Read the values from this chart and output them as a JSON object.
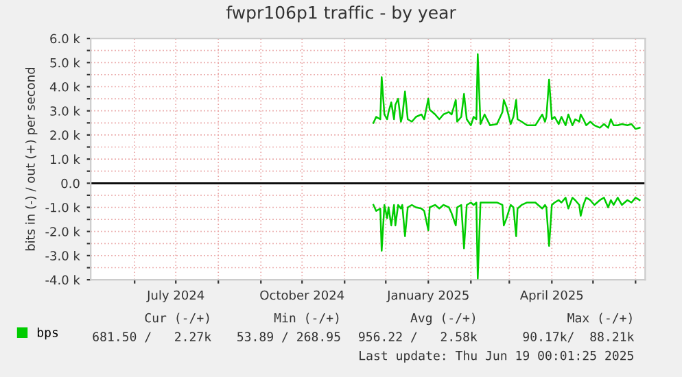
{
  "chart_data": {
    "type": "line",
    "title": "fwpr106p1 traffic - by year",
    "ylabel": "bits in (-) / out (+) per second",
    "x": [
      "2024-11-22",
      "2024-11-24",
      "2024-11-27",
      "2024-11-28",
      "2024-11-30",
      "2024-12-02",
      "2024-12-03",
      "2024-12-05",
      "2024-12-07",
      "2024-12-08",
      "2024-12-10",
      "2024-12-12",
      "2024-12-13",
      "2024-12-15",
      "2024-12-17",
      "2024-12-20",
      "2024-12-23",
      "2024-12-27",
      "2024-12-29",
      "2025-01-01",
      "2025-01-02",
      "2025-01-06",
      "2025-01-09",
      "2025-01-12",
      "2025-01-16",
      "2025-01-18",
      "2025-01-21",
      "2025-01-22",
      "2025-01-25",
      "2025-01-27",
      "2025-01-29",
      "2025-02-01",
      "2025-02-03",
      "2025-02-05",
      "2025-02-06",
      "2025-02-08",
      "2025-02-11",
      "2025-02-15",
      "2025-02-20",
      "2025-02-24",
      "2025-02-25",
      "2025-02-27",
      "2025-03-02",
      "2025-03-04",
      "2025-03-06",
      "2025-03-07",
      "2025-03-10",
      "2025-03-14",
      "2025-03-20",
      "2025-03-25",
      "2025-03-27",
      "2025-03-28",
      "2025-03-30",
      "2025-04-01",
      "2025-04-03",
      "2025-04-06",
      "2025-04-08",
      "2025-04-11",
      "2025-04-13",
      "2025-04-16",
      "2025-04-18",
      "2025-04-21",
      "2025-04-22",
      "2025-04-24",
      "2025-04-26",
      "2025-04-29",
      "2025-05-02",
      "2025-05-06",
      "2025-05-09",
      "2025-05-12",
      "2025-05-14",
      "2025-05-16",
      "2025-05-19",
      "2025-05-22",
      "2025-05-26",
      "2025-05-29",
      "2025-06-01",
      "2025-06-04"
    ],
    "series": [
      {
        "name": "bps",
        "color": "#00cc00",
        "values": [
          2500,
          2750,
          2650,
          4400,
          2850,
          2650,
          2950,
          3350,
          2650,
          3250,
          3500,
          2550,
          2750,
          3800,
          2650,
          2550,
          2750,
          2850,
          2650,
          3500,
          3050,
          2850,
          2650,
          2850,
          2950,
          2850,
          3450,
          2550,
          2750,
          3700,
          2650,
          2400,
          2750,
          2650,
          5350,
          2450,
          2850,
          2400,
          2450,
          2950,
          3450,
          3150,
          2450,
          2750,
          3450,
          2650,
          2550,
          2400,
          2400,
          2850,
          2550,
          2750,
          4300,
          2650,
          2750,
          2450,
          2750,
          2400,
          2850,
          2400,
          2650,
          2550,
          2850,
          2650,
          2400,
          2550,
          2400,
          2300,
          2450,
          2300,
          2650,
          2400,
          2400,
          2450,
          2400,
          2450,
          2250,
          2300
        ]
      },
      {
        "color": "#00cc00",
        "values": [
          -900,
          -1150,
          -1050,
          -2800,
          -900,
          -1450,
          -1000,
          -1750,
          -900,
          -1750,
          -900,
          -1050,
          -900,
          -2200,
          -1000,
          -900,
          -1000,
          -1050,
          -1150,
          -1950,
          -1000,
          -900,
          -1050,
          -900,
          -1000,
          -1250,
          -1750,
          -1000,
          -900,
          -2700,
          -900,
          -800,
          -900,
          -800,
          -3950,
          -800,
          -800,
          -800,
          -800,
          -900,
          -1750,
          -1450,
          -900,
          -1000,
          -2200,
          -1050,
          -900,
          -800,
          -800,
          -1050,
          -900,
          -1000,
          -2600,
          -900,
          -800,
          -700,
          -800,
          -600,
          -1050,
          -600,
          -700,
          -900,
          -1350,
          -900,
          -600,
          -700,
          -900,
          -700,
          -600,
          -1000,
          -700,
          -900,
          -600,
          -900,
          -700,
          -800,
          -600,
          -700
        ]
      }
    ],
    "xlim": [
      "2024-04-30",
      "2025-06-08"
    ],
    "xticks": [
      {
        "value": "2024-06-01",
        "label": null
      },
      {
        "value": "2024-07-01",
        "label": "July 2024"
      },
      {
        "value": "2024-08-01",
        "label": null
      },
      {
        "value": "2024-09-01",
        "label": null
      },
      {
        "value": "2024-10-01",
        "label": "October 2024"
      },
      {
        "value": "2024-11-01",
        "label": null
      },
      {
        "value": "2024-12-01",
        "label": null
      },
      {
        "value": "2025-01-01",
        "label": "January 2025"
      },
      {
        "value": "2025-02-01",
        "label": null
      },
      {
        "value": "2025-03-01",
        "label": null
      },
      {
        "value": "2025-04-01",
        "label": "April 2025"
      },
      {
        "value": "2025-05-01",
        "label": null
      },
      {
        "value": "2025-06-01",
        "label": null
      }
    ],
    "ylim": [
      -4000,
      6000
    ],
    "yticks": [
      {
        "value": -4000,
        "label": "-4.0 k"
      },
      {
        "value": -3500,
        "label": null
      },
      {
        "value": -3000,
        "label": "-3.0 k"
      },
      {
        "value": -2500,
        "label": null
      },
      {
        "value": -2000,
        "label": "-2.0 k"
      },
      {
        "value": -1500,
        "label": null
      },
      {
        "value": -1000,
        "label": "-1.0 k"
      },
      {
        "value": -500,
        "label": null
      },
      {
        "value": 0,
        "label": "0.0"
      },
      {
        "value": 500,
        "label": null
      },
      {
        "value": 1000,
        "label": "1.0 k"
      },
      {
        "value": 1500,
        "label": null
      },
      {
        "value": 2000,
        "label": "2.0 k"
      },
      {
        "value": 2500,
        "label": null
      },
      {
        "value": 3000,
        "label": "3.0 k"
      },
      {
        "value": 3500,
        "label": null
      },
      {
        "value": 4000,
        "label": "4.0 k"
      },
      {
        "value": 4500,
        "label": null
      },
      {
        "value": 5000,
        "label": "5.0 k"
      },
      {
        "value": 5500,
        "label": null
      },
      {
        "value": 6000,
        "label": "6.0 k"
      }
    ],
    "ref_lines": [
      {
        "axis": "y",
        "value": 0,
        "color": "#000000"
      }
    ],
    "grid": true,
    "legend": "bottom left",
    "marker": "none",
    "line_style": "solid",
    "annotations": [
      "Cur (-/+)",
      "Min (-/+)",
      "Avg (-/+)",
      "Max (-/+)",
      "681.50 /   2.27k",
      "53.89 / 268.95",
      "956.22 /   2.58k",
      "90.17k/  88.21k",
      "Last update: Thu Jun 19 00:01:25 2025"
    ]
  }
}
